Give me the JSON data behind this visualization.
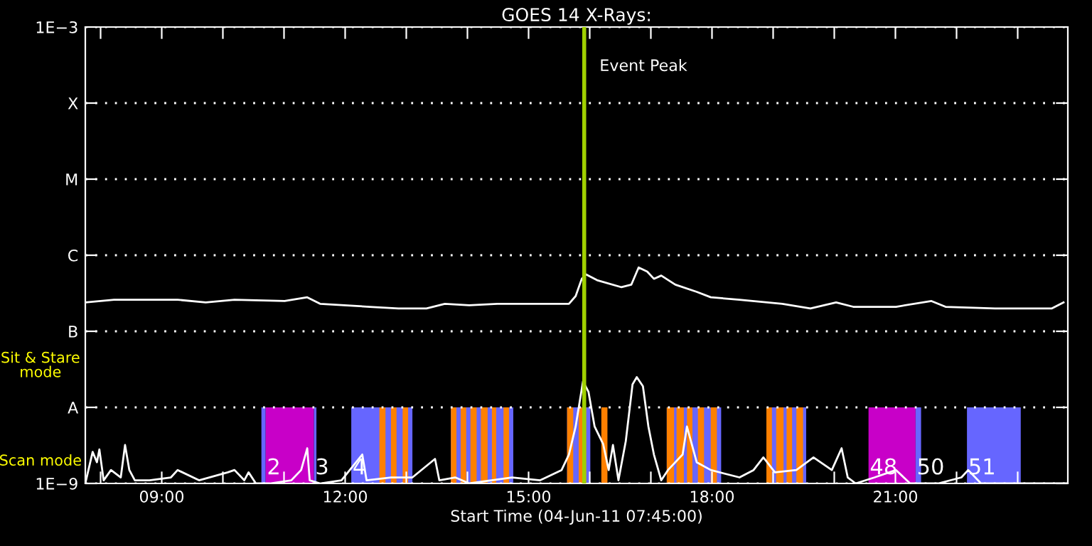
{
  "chart_data": {
    "type": "line",
    "title": "GOES 14 X-Rays:",
    "xlabel": "Start Time (04-Jun-11 07:45:00)",
    "log": "y",
    "grid": "y",
    "xlim": [
      7.75,
      23.82
    ],
    "ylim": [
      1e-09,
      0.001
    ],
    "xticks": [
      {
        "value": 8,
        "label": null
      },
      {
        "value": 9,
        "label": "09:00"
      },
      {
        "value": 10,
        "label": null
      },
      {
        "value": 11,
        "label": null
      },
      {
        "value": 12,
        "label": "12:00"
      },
      {
        "value": 13,
        "label": null
      },
      {
        "value": 14,
        "label": null
      },
      {
        "value": 15,
        "label": "15:00"
      },
      {
        "value": 16,
        "label": null
      },
      {
        "value": 17,
        "label": null
      },
      {
        "value": 18,
        "label": "18:00"
      },
      {
        "value": 19,
        "label": null
      },
      {
        "value": 20,
        "label": null
      },
      {
        "value": 21,
        "label": "21:00"
      },
      {
        "value": 22,
        "label": null
      },
      {
        "value": 23,
        "label": null
      }
    ],
    "yticks": [
      {
        "value": 1e-09,
        "label": "1E−9"
      },
      {
        "value": 1e-08,
        "label": "A"
      },
      {
        "value": 1e-07,
        "label": "B"
      },
      {
        "value": 1e-06,
        "label": "C"
      },
      {
        "value": 1e-05,
        "label": "M"
      },
      {
        "value": 0.0001,
        "label": "X"
      },
      {
        "value": 0.001,
        "label": "1E−3"
      }
    ],
    "series": [
      {
        "color": "#ffffff",
        "x": [
          7.75,
          8.22,
          9.26,
          9.72,
          10.19,
          11.01,
          11.38,
          11.59,
          12.4,
          12.87,
          13.33,
          13.63,
          14.03,
          14.49,
          15.19,
          15.66,
          15.77,
          15.87,
          15.94,
          16.12,
          16.52,
          16.68,
          16.8,
          16.94,
          17.05,
          17.17,
          17.4,
          17.75,
          17.98,
          18.45,
          19.15,
          19.61,
          20.03,
          20.31,
          21.01,
          21.59,
          21.82,
          22.63,
          23.56,
          23.75
        ],
        "values": [
          2.4e-07,
          2.6e-07,
          2.6e-07,
          2.4e-07,
          2.6e-07,
          2.5e-07,
          2.8e-07,
          2.3e-07,
          2.1e-07,
          2e-07,
          2e-07,
          2.3e-07,
          2.2e-07,
          2.3e-07,
          2.3e-07,
          2.3e-07,
          2.9e-07,
          4.9e-07,
          5.6e-07,
          4.7e-07,
          3.8e-07,
          4.1e-07,
          6.9e-07,
          6.1e-07,
          4.9e-07,
          5.4e-07,
          4.1e-07,
          3.3e-07,
          2.8e-07,
          2.6e-07,
          2.3e-07,
          2e-07,
          2.4e-07,
          2.1e-07,
          2.1e-07,
          2.5e-07,
          2.1e-07,
          2e-07,
          2e-07,
          2.4e-07
        ]
      },
      {
        "color": "#ffffff",
        "x": [
          7.75,
          7.87,
          7.94,
          7.98,
          8.05,
          8.17,
          8.33,
          8.4,
          8.47,
          8.56,
          8.8,
          9.15,
          9.26,
          9.61,
          10.08,
          10.19,
          10.35,
          10.42,
          10.54,
          10.77,
          11.12,
          11.28,
          11.38,
          11.42,
          11.59,
          11.94,
          12.28,
          12.35,
          12.75,
          13.1,
          13.47,
          13.54,
          13.8,
          14.03,
          14.73,
          15.19,
          15.54,
          15.66,
          15.77,
          15.89,
          15.98,
          16.08,
          16.22,
          16.31,
          16.38,
          16.47,
          16.59,
          16.7,
          16.77,
          16.87,
          16.96,
          17.05,
          17.17,
          17.28,
          17.52,
          17.59,
          17.75,
          17.98,
          18.45,
          18.68,
          18.84,
          19.03,
          19.38,
          19.66,
          19.96,
          20.12,
          20.22,
          20.35,
          20.66,
          21.01,
          21.24,
          21.47,
          21.7,
          22.08,
          22.19,
          22.4,
          23.1,
          23.8
        ],
        "values": [
          1e-09,
          2.6e-09,
          1.9e-09,
          2.8e-09,
          1.1e-09,
          1.5e-09,
          1.2e-09,
          3.2e-09,
          1.5e-09,
          1.1e-09,
          1.1e-09,
          1.2e-09,
          1.5e-09,
          1.1e-09,
          1.4e-09,
          1.5e-09,
          1.1e-09,
          1.4e-09,
          1e-09,
          1e-09,
          1.1e-09,
          1.5e-09,
          2.9e-09,
          1.1e-09,
          1e-09,
          1.1e-09,
          2.4e-09,
          1.1e-09,
          1.2e-09,
          1.2e-09,
          2.1e-09,
          1.1e-09,
          1.2e-09,
          1e-09,
          1.2e-09,
          1.1e-09,
          1.5e-09,
          2.4e-09,
          5.6e-09,
          2.2e-08,
          1.6e-08,
          5.6e-09,
          3.3e-09,
          1.5e-09,
          3.2e-09,
          1.1e-09,
          3.6e-09,
          2e-08,
          2.5e-08,
          1.9e-08,
          5.6e-09,
          2.4e-09,
          1.1e-09,
          1.5e-09,
          2.4e-09,
          5.6e-09,
          1.9e-09,
          1.5e-09,
          1.2e-09,
          1.5e-09,
          2.2e-09,
          1.4e-09,
          1.5e-09,
          2.2e-09,
          1.5e-09,
          2.9e-09,
          1.2e-09,
          1e-09,
          1.2e-09,
          1.5e-09,
          1e-09,
          1e-09,
          1e-09,
          1.2e-09,
          1.5e-09,
          1e-09,
          1e-09,
          1e-09
        ]
      }
    ],
    "ref_lines": [
      {
        "axis": "x",
        "value": 15.91,
        "label": "Event Peak",
        "color": "#a0d000"
      }
    ],
    "bands": [
      {
        "axis": "x",
        "from": 10.63,
        "to": 10.7,
        "color": "#6666ff"
      },
      {
        "axis": "x",
        "from": 10.7,
        "to": 11.49,
        "color": "#c800c8",
        "label": "2"
      },
      {
        "axis": "x",
        "from": 11.49,
        "to": 11.53,
        "color": "#6666ff",
        "label": "3"
      },
      {
        "axis": "x",
        "from": 12.1,
        "to": 13.1,
        "color": "#6666ff",
        "label": "4"
      },
      {
        "axis": "x",
        "from": 12.56,
        "to": 12.66,
        "color": "#ff8000"
      },
      {
        "axis": "x",
        "from": 12.75,
        "to": 12.84,
        "color": "#ff8000"
      },
      {
        "axis": "x",
        "from": 12.94,
        "to": 13.03,
        "color": "#ff8000"
      },
      {
        "axis": "x",
        "from": 13.73,
        "to": 14.75,
        "color": "#6666ff"
      },
      {
        "axis": "x",
        "from": 13.73,
        "to": 13.82,
        "color": "#ff8000"
      },
      {
        "axis": "x",
        "from": 13.89,
        "to": 13.98,
        "color": "#ff8000"
      },
      {
        "axis": "x",
        "from": 14.05,
        "to": 14.15,
        "color": "#ff8000"
      },
      {
        "axis": "x",
        "from": 14.22,
        "to": 14.33,
        "color": "#ff8000"
      },
      {
        "axis": "x",
        "from": 14.4,
        "to": 14.47,
        "color": "#ff8000"
      },
      {
        "axis": "x",
        "from": 14.59,
        "to": 14.68,
        "color": "#ff8000"
      },
      {
        "axis": "x",
        "from": 15.63,
        "to": 16.01,
        "color": "#6666ff"
      },
      {
        "axis": "x",
        "from": 15.63,
        "to": 15.73,
        "color": "#ff8000"
      },
      {
        "axis": "x",
        "from": 15.82,
        "to": 15.94,
        "color": "#ff8000"
      },
      {
        "axis": "x",
        "from": 16.19,
        "to": 16.29,
        "color": "#ff8000"
      },
      {
        "axis": "x",
        "from": 17.26,
        "to": 18.15,
        "color": "#6666ff"
      },
      {
        "axis": "x",
        "from": 17.26,
        "to": 17.38,
        "color": "#ff8000"
      },
      {
        "axis": "x",
        "from": 17.42,
        "to": 17.54,
        "color": "#ff8000"
      },
      {
        "axis": "x",
        "from": 17.59,
        "to": 17.68,
        "color": "#ff8000"
      },
      {
        "axis": "x",
        "from": 17.77,
        "to": 17.87,
        "color": "#ff8000"
      },
      {
        "axis": "x",
        "from": 17.98,
        "to": 18.08,
        "color": "#ff8000"
      },
      {
        "axis": "x",
        "from": 18.89,
        "to": 19.54,
        "color": "#6666ff"
      },
      {
        "axis": "x",
        "from": 18.89,
        "to": 18.98,
        "color": "#ff8000"
      },
      {
        "axis": "x",
        "from": 19.05,
        "to": 19.17,
        "color": "#ff8000"
      },
      {
        "axis": "x",
        "from": 19.22,
        "to": 19.31,
        "color": "#ff8000"
      },
      {
        "axis": "x",
        "from": 19.38,
        "to": 19.49,
        "color": "#ff8000"
      },
      {
        "axis": "x",
        "from": 20.56,
        "to": 21.33,
        "color": "#c800c8",
        "label": "48"
      },
      {
        "axis": "x",
        "from": 21.33,
        "to": 21.42,
        "color": "#6666ff",
        "label": "50"
      },
      {
        "axis": "x",
        "from": 22.17,
        "to": 23.05,
        "color": "#6666ff",
        "label": "51"
      }
    ],
    "annotations": [
      "Sit & Stare\nmode",
      "Scan mode"
    ]
  }
}
